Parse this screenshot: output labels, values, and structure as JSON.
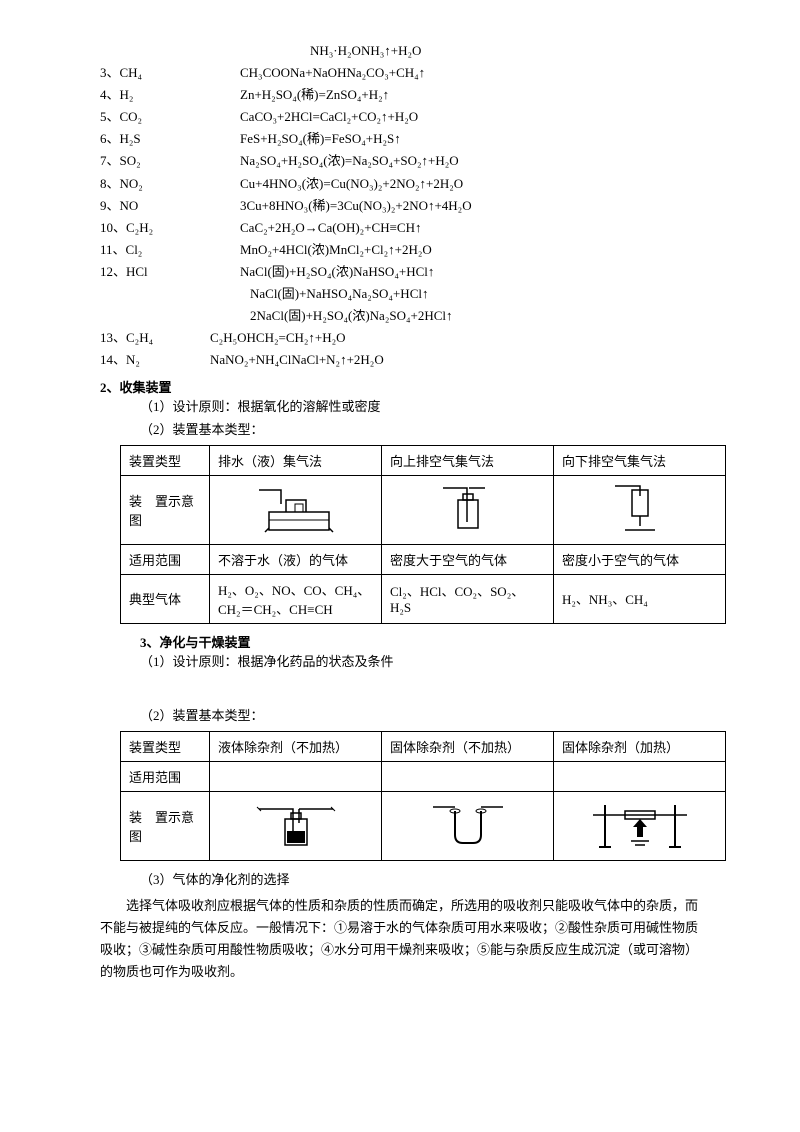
{
  "topEquation": "NH₃·H₂ONH₃↑+H₂O",
  "equations": [
    {
      "n": "3、CH₄",
      "f": "CH₃COONa+NaOHNa₂CO₃+CH₄↑"
    },
    {
      "n": "4、H₂",
      "f": "Zn+H₂SO₄(稀)=ZnSO₄+H₂↑"
    },
    {
      "n": "5、CO₂",
      "f": "CaCO₃+2HCl=CaCl₂+CO₂↑+H₂O"
    },
    {
      "n": "6、H₂S",
      "f": "FeS+H₂SO₄(稀)=FeSO₄+H₂S↑"
    },
    {
      "n": "7、SO₂",
      "f": "Na₂SO₄+H₂SO₄(浓)=Na₂SO₄+SO₂↑+H₂O"
    },
    {
      "n": "8、NO₂",
      "f": "Cu+4HNO₃(浓)=Cu(NO₃)₂+2NO₂↑+2H₂O"
    },
    {
      "n": "9、NO",
      "f": "3Cu+8HNO₃(稀)=3Cu(NO₃)₂+2NO↑+4H₂O"
    },
    {
      "n": "10、C₂H₂",
      "f": "CaC₂+2H₂O→Ca(OH)₂+CH≡CH↑"
    },
    {
      "n": "11、Cl₂",
      "f": "MnO₂+4HCl(浓)MnCl₂+Cl₂↑+2H₂O"
    },
    {
      "n": "12、HCl",
      "f": "NaCl(固)+H₂SO₄(浓)NaHSO₄+HCl↑"
    }
  ],
  "extraEq": [
    "NaCl(固)+NaHSO₄Na₂SO₄+HCl↑",
    "2NaCl(固)+H₂SO₄(浓)Na₂SO₄+2HCl↑"
  ],
  "tailEq": [
    {
      "n": "13、C₂H₄",
      "f": "C₂H₅OHCH₂=CH₂↑+H₂O"
    },
    {
      "n": "14、N₂",
      "f": "NaNO₂+NH₄ClNaCl+N₂↑+2H₂O"
    }
  ],
  "sec2": {
    "title": "2、收集装置",
    "p1": "（1）设计原则：根据氧化的溶解性或密度",
    "p2": "（2）装置基本类型："
  },
  "table1": {
    "r1": [
      "装置类型",
      "排水（液）集气法",
      "向上排空气集气法",
      "向下排空气集气法"
    ],
    "r2h": "装　置示意图",
    "r3": [
      "适用范围",
      "不溶于水（液）的气体",
      "密度大于空气的气体",
      "密度小于空气的气体"
    ],
    "r4": [
      "典型气体",
      "H₂、O₂、NO、CO、CH₄、CH₂＝CH₂、CH≡CH",
      "Cl₂、HCl、CO₂、SO₂、H₂S",
      "H₂、NH₃、CH₄"
    ]
  },
  "sec3": {
    "title": "3、净化与干燥装置",
    "p1": "（1）设计原则：根据净化药品的状态及条件",
    "p2": "（2）装置基本类型："
  },
  "table2": {
    "r1": [
      "装置类型",
      "液体除杂剂（不加热）",
      "固体除杂剂（不加热）",
      "固体除杂剂（加热）"
    ],
    "r2": [
      "适用范围",
      "",
      "",
      ""
    ],
    "r3h": "装　置示意图"
  },
  "sec3p3": "（3）气体的净化剂的选择",
  "finalPara": "选择气体吸收剂应根据气体的性质和杂质的性质而确定，所选用的吸收剂只能吸收气体中的杂质，而不能与被提纯的气体反应。一般情况下：①易溶于水的气体杂质可用水来吸收；②酸性杂质可用碱性物质吸收；③碱性杂质可用酸性物质吸收；④水分可用干燥剂来吸收；⑤能与杂质反应生成沉淀（或可溶物）的物质也可作为吸收剂。"
}
